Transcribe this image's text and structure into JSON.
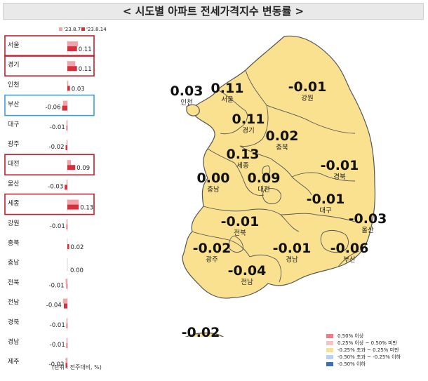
{
  "title": "< 시도별 아파트 전세가격지수 변동률 >",
  "unit_note": "(단위 : 전주대비, %)",
  "colors": {
    "prev_bar": "#f2a2ab",
    "curr_bar": "#d6303f",
    "map_fill": "#f9e190",
    "map_stroke": "#555555",
    "red_box": "#c0202a",
    "blue_box": "#3aa0dc"
  },
  "chart_data": [
    {
      "type": "bar",
      "orientation": "horizontal",
      "series_labels": [
        "'23.8.7",
        "'23.8.14"
      ],
      "rows": [
        {
          "region": "서울",
          "label": "0.11",
          "prev": 0.12,
          "curr": 0.11,
          "box": "red"
        },
        {
          "region": "경기",
          "label": "0.11",
          "prev": 0.09,
          "curr": 0.11,
          "box": "red"
        },
        {
          "region": "인천",
          "label": "0.03",
          "prev": 0.01,
          "curr": 0.03,
          "box": ""
        },
        {
          "region": "부산",
          "label": "-0.06",
          "prev": -0.05,
          "curr": -0.06,
          "box": "blue"
        },
        {
          "region": "대구",
          "label": "-0.01",
          "prev": -0.01,
          "curr": -0.01,
          "box": ""
        },
        {
          "region": "광주",
          "label": "-0.02",
          "prev": -0.01,
          "curr": -0.02,
          "box": ""
        },
        {
          "region": "대전",
          "label": "0.09",
          "prev": 0.04,
          "curr": 0.09,
          "box": "red"
        },
        {
          "region": "울산",
          "label": "-0.03",
          "prev": -0.01,
          "curr": -0.03,
          "box": ""
        },
        {
          "region": "세종",
          "label": "0.13",
          "prev": 0.13,
          "curr": 0.13,
          "box": "red"
        },
        {
          "region": "강원",
          "label": "-0.01",
          "prev": -0.01,
          "curr": -0.01,
          "box": ""
        },
        {
          "region": "충북",
          "label": "0.02",
          "prev": 0.0,
          "curr": 0.02,
          "box": ""
        },
        {
          "region": "충남",
          "label": "0.00",
          "prev": 0.0,
          "curr": 0.0,
          "box": ""
        },
        {
          "region": "전북",
          "label": "-0.01",
          "prev": -0.02,
          "curr": -0.01,
          "box": ""
        },
        {
          "region": "전남",
          "label": "-0.04",
          "prev": -0.05,
          "curr": -0.04,
          "box": ""
        },
        {
          "region": "경북",
          "label": "-0.01",
          "prev": -0.01,
          "curr": -0.01,
          "box": ""
        },
        {
          "region": "경남",
          "label": "-0.01",
          "prev": -0.01,
          "curr": -0.01,
          "box": ""
        },
        {
          "region": "제주",
          "label": "-0.02",
          "prev": -0.02,
          "curr": -0.02,
          "box": ""
        }
      ]
    },
    {
      "type": "map",
      "regions": [
        {
          "name": "인천",
          "value": "0.03"
        },
        {
          "name": "서울",
          "value": "0.11"
        },
        {
          "name": "강원",
          "value": "-0.01"
        },
        {
          "name": "경기",
          "value": "0.11"
        },
        {
          "name": "충북",
          "value": "0.02"
        },
        {
          "name": "세종",
          "value": "0.13"
        },
        {
          "name": "충남",
          "value": "0.00"
        },
        {
          "name": "대전",
          "value": "0.09"
        },
        {
          "name": "경북",
          "value": "-0.01"
        },
        {
          "name": "대구",
          "value": "-0.01"
        },
        {
          "name": "전북",
          "value": "-0.01"
        },
        {
          "name": "울산",
          "value": "-0.03"
        },
        {
          "name": "광주",
          "value": "-0.02"
        },
        {
          "name": "경남",
          "value": "-0.01"
        },
        {
          "name": "부산",
          "value": "-0.06"
        },
        {
          "name": "전남",
          "value": "-0.04"
        },
        {
          "name": "제주",
          "value": "-0.02"
        }
      ]
    }
  ],
  "legend": [
    {
      "label": "0.50% 이상",
      "color": "#ee7b86"
    },
    {
      "label": "0.25% 이상 ~ 0.50% 미만",
      "color": "#f6c2c8"
    },
    {
      "label": "-0.25% 초과 ~ 0.25% 미만",
      "color": "#f9e190"
    },
    {
      "label": "-0.50% 초과 ~ -0.25% 이하",
      "color": "#b9d3ee"
    },
    {
      "label": "-0.50% 이하",
      "color": "#3b6fb6"
    }
  ]
}
